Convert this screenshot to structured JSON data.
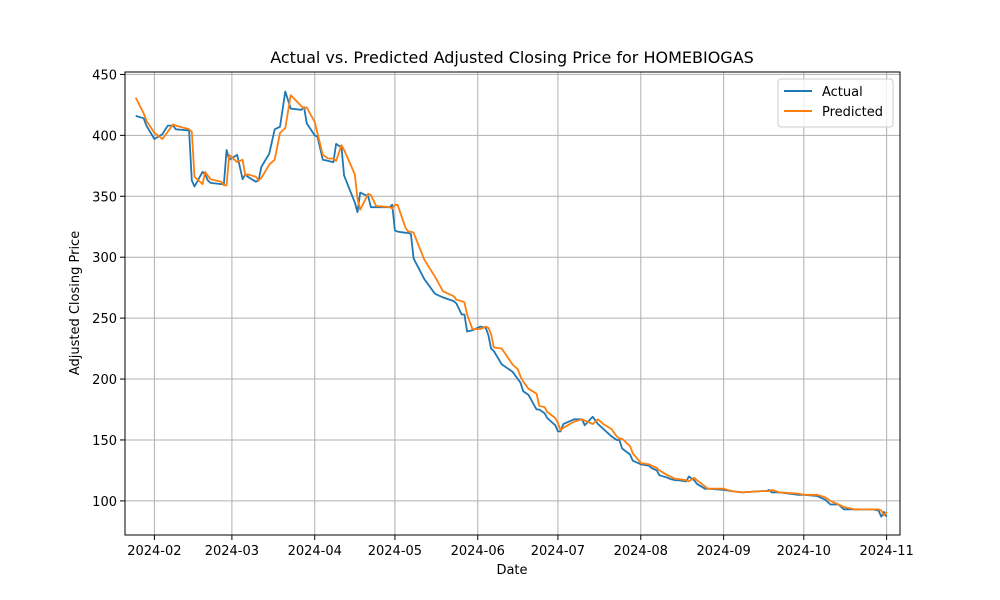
{
  "chart_data": {
    "type": "line",
    "title": "Actual vs. Predicted Adjusted Closing Price for HOMEBIOGAS",
    "xlabel": "Date",
    "ylabel": "Adjusted Closing Price",
    "xlim": [
      "2024-01-21",
      "2024-11-06"
    ],
    "ylim": [
      72,
      452
    ],
    "grid": true,
    "legend_position": "top-right",
    "x_ticks": [
      {
        "date": "2024-02-01",
        "label": "2024-02"
      },
      {
        "date": "2024-03-01",
        "label": "2024-03"
      },
      {
        "date": "2024-04-01",
        "label": "2024-04"
      },
      {
        "date": "2024-05-01",
        "label": "2024-05"
      },
      {
        "date": "2024-06-01",
        "label": "2024-06"
      },
      {
        "date": "2024-07-01",
        "label": "2024-07"
      },
      {
        "date": "2024-08-01",
        "label": "2024-08"
      },
      {
        "date": "2024-09-01",
        "label": "2024-09"
      },
      {
        "date": "2024-10-01",
        "label": "2024-10"
      },
      {
        "date": "2024-11-01",
        "label": "2024-11"
      }
    ],
    "y_ticks": [
      100,
      150,
      200,
      250,
      300,
      350,
      400,
      450
    ],
    "series": [
      {
        "name": "Actual",
        "color": "#1f77b4",
        "points": [
          [
            "2024-01-25",
            416
          ],
          [
            "2024-01-28",
            414
          ],
          [
            "2024-01-29",
            408
          ],
          [
            "2024-02-01",
            397
          ],
          [
            "2024-02-04",
            401
          ],
          [
            "2024-02-06",
            408
          ],
          [
            "2024-02-08",
            408
          ],
          [
            "2024-02-09",
            405
          ],
          [
            "2024-02-14",
            404
          ],
          [
            "2024-02-15",
            363
          ],
          [
            "2024-02-16",
            358
          ],
          [
            "2024-02-19",
            370
          ],
          [
            "2024-02-20",
            368
          ],
          [
            "2024-02-21",
            363
          ],
          [
            "2024-02-22",
            361
          ],
          [
            "2024-02-26",
            360
          ],
          [
            "2024-02-27",
            360
          ],
          [
            "2024-02-28",
            388
          ],
          [
            "2024-02-29",
            380
          ],
          [
            "2024-03-03",
            384
          ],
          [
            "2024-03-05",
            364
          ],
          [
            "2024-03-06",
            368
          ],
          [
            "2024-03-07",
            366
          ],
          [
            "2024-03-10",
            362
          ],
          [
            "2024-03-11",
            363
          ],
          [
            "2024-03-12",
            374
          ],
          [
            "2024-03-15",
            385
          ],
          [
            "2024-03-17",
            405
          ],
          [
            "2024-03-19",
            407
          ],
          [
            "2024-03-21",
            436
          ],
          [
            "2024-03-23",
            422
          ],
          [
            "2024-03-27",
            421
          ],
          [
            "2024-03-28",
            423
          ],
          [
            "2024-03-29",
            410
          ],
          [
            "2024-04-01",
            400
          ],
          [
            "2024-04-02",
            399
          ],
          [
            "2024-04-04",
            380
          ],
          [
            "2024-04-06",
            379
          ],
          [
            "2024-04-08",
            378
          ],
          [
            "2024-04-09",
            393
          ],
          [
            "2024-04-11",
            390
          ],
          [
            "2024-04-12",
            367
          ],
          [
            "2024-04-16",
            345
          ],
          [
            "2024-04-17",
            337
          ],
          [
            "2024-04-18",
            353
          ],
          [
            "2024-04-21",
            350
          ],
          [
            "2024-04-22",
            341
          ],
          [
            "2024-04-24",
            341
          ],
          [
            "2024-04-29",
            341
          ],
          [
            "2024-04-30",
            343
          ],
          [
            "2024-05-01",
            322
          ],
          [
            "2024-05-02",
            321
          ],
          [
            "2024-05-05",
            320
          ],
          [
            "2024-05-06",
            320
          ],
          [
            "2024-05-07",
            319
          ],
          [
            "2024-05-08",
            299
          ],
          [
            "2024-05-12",
            282
          ],
          [
            "2024-05-16",
            270
          ],
          [
            "2024-05-19",
            267
          ],
          [
            "2024-05-23",
            264
          ],
          [
            "2024-05-24",
            262
          ],
          [
            "2024-05-26",
            253
          ],
          [
            "2024-05-27",
            253
          ],
          [
            "2024-05-28",
            239
          ],
          [
            "2024-05-30",
            240
          ],
          [
            "2024-06-02",
            243
          ],
          [
            "2024-06-04",
            242
          ],
          [
            "2024-06-05",
            236
          ],
          [
            "2024-06-06",
            225
          ],
          [
            "2024-06-07",
            223
          ],
          [
            "2024-06-10",
            212
          ],
          [
            "2024-06-14",
            206
          ],
          [
            "2024-06-16",
            200
          ],
          [
            "2024-06-17",
            197
          ],
          [
            "2024-06-18",
            190
          ],
          [
            "2024-06-20",
            187
          ],
          [
            "2024-06-23",
            175
          ],
          [
            "2024-06-24",
            175
          ],
          [
            "2024-06-26",
            172
          ],
          [
            "2024-06-27",
            168
          ],
          [
            "2024-06-30",
            162
          ],
          [
            "2024-07-01",
            157
          ],
          [
            "2024-07-02",
            157
          ],
          [
            "2024-07-03",
            163
          ],
          [
            "2024-07-07",
            167
          ],
          [
            "2024-07-10",
            167
          ],
          [
            "2024-07-11",
            162
          ],
          [
            "2024-07-14",
            169
          ],
          [
            "2024-07-16",
            163
          ],
          [
            "2024-07-18",
            159
          ],
          [
            "2024-07-21",
            153
          ],
          [
            "2024-07-23",
            150
          ],
          [
            "2024-07-24",
            150
          ],
          [
            "2024-07-25",
            143
          ],
          [
            "2024-07-28",
            138
          ],
          [
            "2024-07-29",
            133
          ],
          [
            "2024-07-31",
            131
          ],
          [
            "2024-08-01",
            130
          ],
          [
            "2024-08-04",
            129
          ],
          [
            "2024-08-05",
            127
          ],
          [
            "2024-08-07",
            125
          ],
          [
            "2024-08-08",
            121
          ],
          [
            "2024-08-11",
            119
          ],
          [
            "2024-08-12",
            118
          ],
          [
            "2024-08-14",
            117
          ],
          [
            "2024-08-15",
            117
          ],
          [
            "2024-08-18",
            116
          ],
          [
            "2024-08-19",
            120
          ],
          [
            "2024-08-21",
            117
          ],
          [
            "2024-08-22",
            114
          ],
          [
            "2024-08-25",
            110
          ],
          [
            "2024-08-26",
            110
          ],
          [
            "2024-09-01",
            109
          ],
          [
            "2024-09-04",
            108
          ],
          [
            "2024-09-08",
            107
          ],
          [
            "2024-09-15",
            108
          ],
          [
            "2024-09-17",
            108
          ],
          [
            "2024-09-18",
            109
          ],
          [
            "2024-09-19",
            107
          ],
          [
            "2024-09-22",
            107
          ],
          [
            "2024-09-29",
            105
          ],
          [
            "2024-10-01",
            105
          ],
          [
            "2024-10-06",
            104
          ],
          [
            "2024-10-09",
            101
          ],
          [
            "2024-10-11",
            97
          ],
          [
            "2024-10-14",
            97
          ],
          [
            "2024-10-16",
            93
          ],
          [
            "2024-10-20",
            93
          ],
          [
            "2024-10-27",
            93
          ],
          [
            "2024-10-29",
            92
          ],
          [
            "2024-10-30",
            87
          ],
          [
            "2024-10-31",
            91
          ],
          [
            "2024-11-01",
            87
          ]
        ]
      },
      {
        "name": "Predicted",
        "color": "#ff7f0e",
        "points": [
          [
            "2024-01-25",
            431
          ],
          [
            "2024-01-28",
            418
          ],
          [
            "2024-01-29",
            412
          ],
          [
            "2024-02-01",
            402
          ],
          [
            "2024-02-04",
            397
          ],
          [
            "2024-02-06",
            403
          ],
          [
            "2024-02-08",
            409
          ],
          [
            "2024-02-09",
            408
          ],
          [
            "2024-02-14",
            405
          ],
          [
            "2024-02-15",
            403
          ],
          [
            "2024-02-16",
            366
          ],
          [
            "2024-02-19",
            360
          ],
          [
            "2024-02-20",
            370
          ],
          [
            "2024-02-21",
            367
          ],
          [
            "2024-02-22",
            364
          ],
          [
            "2024-02-26",
            362
          ],
          [
            "2024-02-27",
            359
          ],
          [
            "2024-02-28",
            359
          ],
          [
            "2024-02-29",
            384
          ],
          [
            "2024-03-03",
            378
          ],
          [
            "2024-03-05",
            380
          ],
          [
            "2024-03-06",
            367
          ],
          [
            "2024-03-07",
            368
          ],
          [
            "2024-03-10",
            366
          ],
          [
            "2024-03-11",
            363
          ],
          [
            "2024-03-12",
            365
          ],
          [
            "2024-03-15",
            376
          ],
          [
            "2024-03-17",
            380
          ],
          [
            "2024-03-19",
            402
          ],
          [
            "2024-03-21",
            406
          ],
          [
            "2024-03-23",
            433
          ],
          [
            "2024-03-27",
            424
          ],
          [
            "2024-03-28",
            422
          ],
          [
            "2024-03-29",
            423
          ],
          [
            "2024-04-01",
            411
          ],
          [
            "2024-04-02",
            402
          ],
          [
            "2024-04-04",
            384
          ],
          [
            "2024-04-06",
            381
          ],
          [
            "2024-04-08",
            381
          ],
          [
            "2024-04-09",
            379
          ],
          [
            "2024-04-11",
            392
          ],
          [
            "2024-04-12",
            388
          ],
          [
            "2024-04-16",
            368
          ],
          [
            "2024-04-17",
            348
          ],
          [
            "2024-04-18",
            339
          ],
          [
            "2024-04-21",
            352
          ],
          [
            "2024-04-22",
            351
          ],
          [
            "2024-04-24",
            342
          ],
          [
            "2024-04-29",
            341
          ],
          [
            "2024-04-30",
            340
          ],
          [
            "2024-05-01",
            343
          ],
          [
            "2024-05-02",
            343
          ],
          [
            "2024-05-05",
            324
          ],
          [
            "2024-05-06",
            321
          ],
          [
            "2024-05-07",
            321
          ],
          [
            "2024-05-08",
            320
          ],
          [
            "2024-05-12",
            298
          ],
          [
            "2024-05-16",
            284
          ],
          [
            "2024-05-19",
            272
          ],
          [
            "2024-05-23",
            268
          ],
          [
            "2024-05-24",
            265
          ],
          [
            "2024-05-26",
            264
          ],
          [
            "2024-05-27",
            263
          ],
          [
            "2024-05-28",
            253
          ],
          [
            "2024-05-30",
            241
          ],
          [
            "2024-06-02",
            241
          ],
          [
            "2024-06-04",
            243
          ],
          [
            "2024-06-05",
            242
          ],
          [
            "2024-06-06",
            237
          ],
          [
            "2024-06-07",
            226
          ],
          [
            "2024-06-10",
            225
          ],
          [
            "2024-06-14",
            212
          ],
          [
            "2024-06-16",
            208
          ],
          [
            "2024-06-17",
            202
          ],
          [
            "2024-06-18",
            198
          ],
          [
            "2024-06-20",
            192
          ],
          [
            "2024-06-23",
            188
          ],
          [
            "2024-06-24",
            178
          ],
          [
            "2024-06-26",
            177
          ],
          [
            "2024-06-27",
            173
          ],
          [
            "2024-06-30",
            168
          ],
          [
            "2024-07-01",
            164
          ],
          [
            "2024-07-02",
            158
          ],
          [
            "2024-07-03",
            160
          ],
          [
            "2024-07-07",
            165
          ],
          [
            "2024-07-10",
            167
          ],
          [
            "2024-07-11",
            166
          ],
          [
            "2024-07-14",
            163
          ],
          [
            "2024-07-16",
            167
          ],
          [
            "2024-07-18",
            163
          ],
          [
            "2024-07-21",
            159
          ],
          [
            "2024-07-23",
            153
          ],
          [
            "2024-07-24",
            151
          ],
          [
            "2024-07-25",
            151
          ],
          [
            "2024-07-28",
            145
          ],
          [
            "2024-07-29",
            139
          ],
          [
            "2024-07-31",
            134
          ],
          [
            "2024-08-01",
            131
          ],
          [
            "2024-08-04",
            130
          ],
          [
            "2024-08-05",
            129
          ],
          [
            "2024-08-07",
            127
          ],
          [
            "2024-08-08",
            125
          ],
          [
            "2024-08-11",
            121
          ],
          [
            "2024-08-12",
            120
          ],
          [
            "2024-08-14",
            118
          ],
          [
            "2024-08-15",
            118
          ],
          [
            "2024-08-18",
            117
          ],
          [
            "2024-08-19",
            116
          ],
          [
            "2024-08-21",
            119
          ],
          [
            "2024-08-22",
            117
          ],
          [
            "2024-08-25",
            112
          ],
          [
            "2024-08-26",
            110
          ],
          [
            "2024-09-01",
            110
          ],
          [
            "2024-09-04",
            108
          ],
          [
            "2024-09-08",
            107
          ],
          [
            "2024-09-15",
            108
          ],
          [
            "2024-09-17",
            108
          ],
          [
            "2024-09-18",
            108
          ],
          [
            "2024-09-19",
            109
          ],
          [
            "2024-09-22",
            107
          ],
          [
            "2024-09-29",
            106
          ],
          [
            "2024-10-01",
            105
          ],
          [
            "2024-10-06",
            105
          ],
          [
            "2024-10-09",
            103
          ],
          [
            "2024-10-11",
            100
          ],
          [
            "2024-10-14",
            97
          ],
          [
            "2024-10-16",
            95
          ],
          [
            "2024-10-20",
            93
          ],
          [
            "2024-10-27",
            93
          ],
          [
            "2024-10-29",
            93
          ],
          [
            "2024-10-30",
            92
          ],
          [
            "2024-10-31",
            88
          ],
          [
            "2024-11-01",
            91
          ]
        ]
      }
    ]
  }
}
